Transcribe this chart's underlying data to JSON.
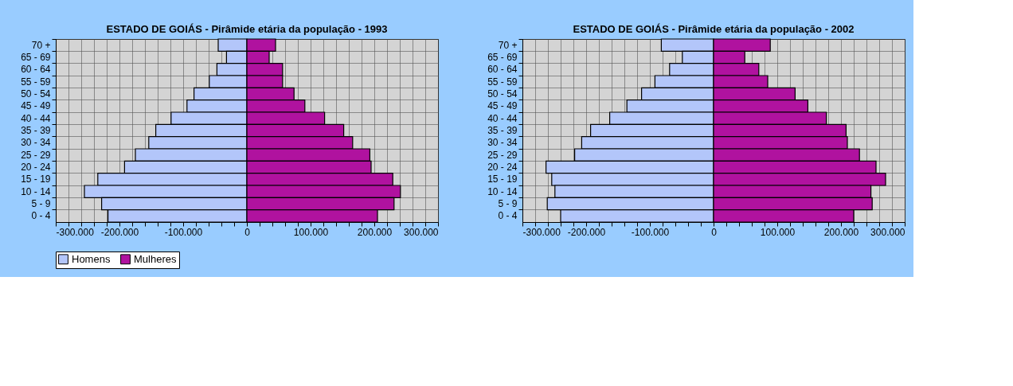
{
  "chart_data": [
    {
      "type": "bar",
      "orientation": "horizontal",
      "stacked": true,
      "title": "ESTADO DE GOIÁS - Pirâmide etária da população - 1993",
      "categories": [
        "70 +",
        "65 - 69",
        "60 - 64",
        "55 - 59",
        "50 - 54",
        "45 - 49",
        "40 - 44",
        "35 - 39",
        "30 - 34",
        "25 - 29",
        "20 - 24",
        "15 - 19",
        "10 - 14",
        "5 - 9",
        "0 - 4"
      ],
      "series": [
        {
          "name": "Homens",
          "color": "#b3c6fa",
          "values": [
            -45000,
            -32000,
            -47000,
            -59000,
            -83000,
            -94000,
            -119000,
            -143000,
            -154000,
            -175000,
            -192000,
            -234000,
            -255000,
            -228000,
            -218000
          ]
        },
        {
          "name": "Mulheres",
          "color": "#b0129f",
          "values": [
            45000,
            35000,
            56000,
            56000,
            74000,
            91000,
            122000,
            152000,
            166000,
            193000,
            195000,
            229000,
            241000,
            231000,
            205000
          ]
        }
      ],
      "xlim": [
        -300000,
        300000
      ],
      "xticks": [
        {
          "value": -300000,
          "label": "-300.000"
        },
        {
          "value": -280000,
          "label": null
        },
        {
          "value": -260000,
          "label": null
        },
        {
          "value": -240000,
          "label": null
        },
        {
          "value": -220000,
          "label": null
        },
        {
          "value": -200000,
          "label": "-200.000"
        },
        {
          "value": -180000,
          "label": null
        },
        {
          "value": -160000,
          "label": null
        },
        {
          "value": -140000,
          "label": null
        },
        {
          "value": -120000,
          "label": null
        },
        {
          "value": -100000,
          "label": "-100.000"
        },
        {
          "value": -80000,
          "label": null
        },
        {
          "value": -60000,
          "label": null
        },
        {
          "value": -40000,
          "label": null
        },
        {
          "value": -20000,
          "label": null
        },
        0,
        {
          "value": 20000,
          "label": null
        },
        {
          "value": 40000,
          "label": null
        },
        {
          "value": 60000,
          "label": null
        },
        {
          "value": 80000,
          "label": null
        },
        {
          "value": 100000,
          "label": "100.000"
        },
        {
          "value": 120000,
          "label": null
        },
        {
          "value": 140000,
          "label": null
        },
        {
          "value": 160000,
          "label": null
        },
        {
          "value": 180000,
          "label": null
        },
        {
          "value": 200000,
          "label": "200.000"
        },
        {
          "value": 220000,
          "label": null
        },
        {
          "value": 240000,
          "label": null
        },
        {
          "value": 260000,
          "label": null
        },
        {
          "value": 280000,
          "label": null
        },
        {
          "value": 300000,
          "label": "300.000"
        }
      ],
      "grid": true,
      "legend": "bottom"
    },
    {
      "type": "bar",
      "orientation": "horizontal",
      "stacked": true,
      "title": "ESTADO DE GOIÁS - Pirâmide etária da população - 2002",
      "categories": [
        "70 +",
        "65 - 69",
        "60 - 64",
        "55 - 59",
        "50 - 54",
        "45 - 49",
        "40 - 44",
        "35 - 39",
        "30 - 34",
        "25 - 29",
        "20 - 24",
        "15 - 19",
        "10 - 14",
        "5 - 9",
        "0 - 4"
      ],
      "series": [
        {
          "name": "Homens",
          "color": "#b3c6fa",
          "values": [
            -82000,
            -49000,
            -69000,
            -92000,
            -113000,
            -136000,
            -163000,
            -193000,
            -207000,
            -218000,
            -263000,
            -254000,
            -249000,
            -261000,
            -240000
          ]
        },
        {
          "name": "Mulheres",
          "color": "#b0129f",
          "values": [
            89000,
            49000,
            71000,
            85000,
            128000,
            148000,
            177000,
            208000,
            210000,
            229000,
            255000,
            270000,
            247000,
            249000,
            220000
          ]
        }
      ],
      "xlim": [
        -300000,
        300000
      ],
      "xticks": [
        {
          "value": -300000,
          "label": "-300.000"
        },
        {
          "value": -280000,
          "label": null
        },
        {
          "value": -260000,
          "label": null
        },
        {
          "value": -240000,
          "label": null
        },
        {
          "value": -220000,
          "label": null
        },
        {
          "value": -200000,
          "label": "-200.000"
        },
        {
          "value": -180000,
          "label": null
        },
        {
          "value": -160000,
          "label": null
        },
        {
          "value": -140000,
          "label": null
        },
        {
          "value": -120000,
          "label": null
        },
        {
          "value": -100000,
          "label": "-100.000"
        },
        {
          "value": -80000,
          "label": null
        },
        {
          "value": -60000,
          "label": null
        },
        {
          "value": -40000,
          "label": null
        },
        {
          "value": -20000,
          "label": null
        },
        0,
        {
          "value": 20000,
          "label": null
        },
        {
          "value": 40000,
          "label": null
        },
        {
          "value": 60000,
          "label": null
        },
        {
          "value": 80000,
          "label": null
        },
        {
          "value": 100000,
          "label": "100.000"
        },
        {
          "value": 120000,
          "label": null
        },
        {
          "value": 140000,
          "label": null
        },
        {
          "value": 160000,
          "label": null
        },
        {
          "value": 180000,
          "label": null
        },
        {
          "value": 200000,
          "label": "200.000"
        },
        {
          "value": 220000,
          "label": null
        },
        {
          "value": 240000,
          "label": null
        },
        {
          "value": 260000,
          "label": null
        },
        {
          "value": 280000,
          "label": null
        },
        {
          "value": 300000,
          "label": "300.000"
        }
      ],
      "grid": true,
      "legend": "bottom"
    }
  ]
}
